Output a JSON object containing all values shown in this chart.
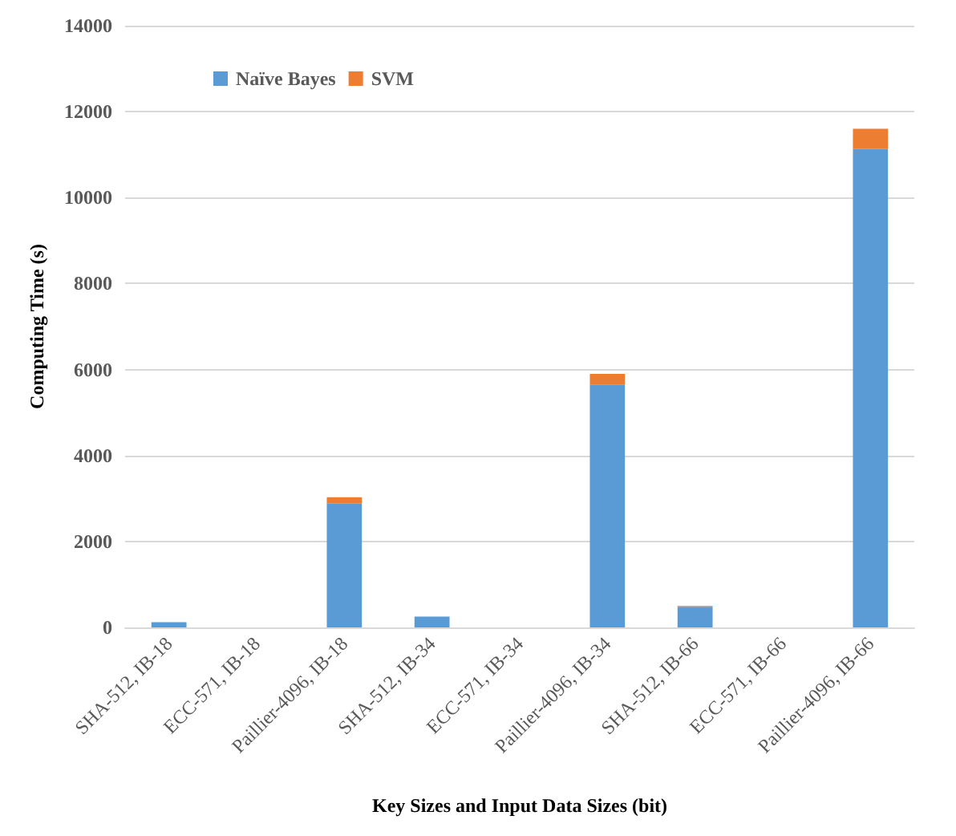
{
  "chart_data": {
    "type": "bar",
    "stacked": true,
    "xlabel": "Key Sizes and Input Data Sizes (bit)",
    "ylabel": "Computing Time (s)",
    "categories": [
      "SHA-512, IB-18",
      "ECC-571, IB-18",
      "Paillier-4096, IB-18",
      "SHA-512, IB-34",
      "ECC-571, IB-34",
      "Paillier-4096, IB-34",
      "SHA-512, IB-66",
      "ECC-571, IB-66",
      "Paillier-4096, IB-66"
    ],
    "series": [
      {
        "name": "Naïve Bayes",
        "color": "#5b9bd5",
        "values": [
          120,
          0,
          2880,
          250,
          0,
          5650,
          480,
          0,
          11130
        ]
      },
      {
        "name": "SVM",
        "color": "#ed7d31",
        "values": [
          0,
          0,
          150,
          0,
          0,
          250,
          20,
          0,
          470
        ]
      }
    ],
    "ylim": [
      0,
      14000
    ],
    "yticks": [
      0,
      2000,
      4000,
      6000,
      8000,
      10000,
      12000,
      14000
    ],
    "grid": "y",
    "legend": "top left"
  }
}
